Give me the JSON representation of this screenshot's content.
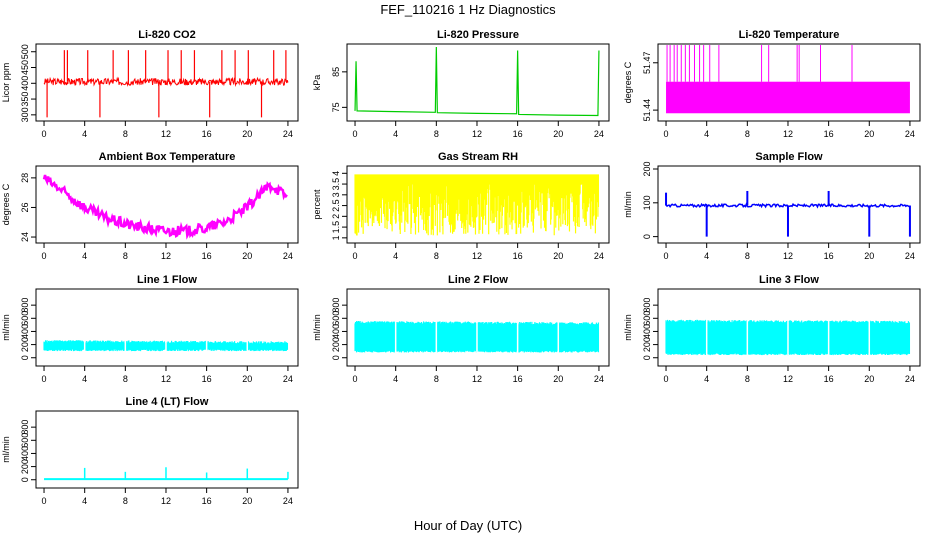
{
  "title": "FEF_110216  1 Hz Diagnostics",
  "xlabel": "Hour of Day (UTC)",
  "chart_data": [
    {
      "type": "line",
      "title": "Li-820 CO2",
      "ylabel": "Licor ppm",
      "color": "#ff0000",
      "xticks": [
        0,
        4,
        8,
        12,
        16,
        20,
        24
      ],
      "yticks": [
        300,
        350,
        400,
        450,
        500
      ],
      "xlim": [
        -0.2,
        24.4
      ],
      "ylim": [
        290,
        515
      ],
      "series": [
        {
          "x": [
            0,
            0.3,
            2,
            2.3,
            4,
            4.3,
            6,
            8,
            8.3,
            10,
            11.3,
            12,
            14,
            16,
            16.3,
            17,
            20,
            22,
            23.8,
            24
          ],
          "y": [
            395,
            405,
            410,
            500,
            400,
            505,
            410,
            395,
            290,
            410,
            500,
            405,
            410,
            400,
            290,
            412,
            405,
            410,
            505,
            360
          ]
        }
      ]
    },
    {
      "type": "line",
      "title": "Li-820 Pressure",
      "ylabel": "kPa",
      "color": "#00cc00",
      "xticks": [
        0,
        4,
        8,
        12,
        16,
        20,
        24
      ],
      "yticks": [
        75,
        85
      ],
      "xlim": [
        -0.2,
        24.4
      ],
      "ylim": [
        72,
        92
      ],
      "series": [
        {
          "x": [
            0,
            0.1,
            0.2,
            4,
            7.9,
            8,
            8.1,
            12,
            15.9,
            16,
            16.1,
            20,
            23.9,
            24
          ],
          "y": [
            74,
            88,
            74,
            73.8,
            73.6,
            92,
            73.5,
            73.3,
            73.2,
            91,
            73,
            72.8,
            72.7,
            91
          ]
        }
      ]
    },
    {
      "type": "line",
      "title": "Li-820 Temperature",
      "ylabel": "degrees C",
      "color": "#ff00ff",
      "xticks": [
        0,
        4,
        8,
        12,
        16,
        20,
        24
      ],
      "yticks": [
        51.44,
        51.47
      ],
      "xlim": [
        -0.2,
        24.4
      ],
      "ylim": [
        51.435,
        51.48
      ],
      "series": [
        {
          "x": [
            0,
            24
          ],
          "y": [
            51.455,
            51.455
          ]
        }
      ]
    },
    {
      "type": "line",
      "title": "Ambient Box Temperature",
      "ylabel": "degrees C",
      "color": "#ff00ff",
      "xticks": [
        0,
        4,
        8,
        12,
        16,
        20,
        24
      ],
      "yticks": [
        24,
        26,
        28
      ],
      "xlim": [
        -0.2,
        24.4
      ],
      "ylim": [
        23.8,
        28.6
      ],
      "series": [
        {
          "x": [
            0,
            2,
            4,
            6,
            8,
            10,
            12,
            14,
            16,
            18,
            20,
            21,
            22,
            22.5,
            23,
            24
          ],
          "y": [
            28.0,
            27.0,
            26.0,
            25.3,
            24.9,
            24.6,
            24.4,
            24.4,
            24.6,
            25.1,
            26.0,
            26.7,
            27.4,
            27.5,
            27.2,
            26.7
          ]
        }
      ]
    },
    {
      "type": "area",
      "title": "Gas Stream RH",
      "ylabel": "percent",
      "color": "#ffff00",
      "xticks": [
        0,
        4,
        8,
        12,
        16,
        20,
        24
      ],
      "yticks": [
        1.0,
        1.5,
        2.0,
        2.5,
        3.0,
        3.5,
        4.0
      ],
      "xlim": [
        -0.2,
        24.4
      ],
      "ylim": [
        0.9,
        4.2
      ],
      "series": [
        {
          "x": [
            0,
            24
          ],
          "y": [
            3.9,
            3.9
          ]
        }
      ]
    },
    {
      "type": "line",
      "title": "Sample Flow",
      "ylabel": "ml/min",
      "color": "#0000ff",
      "xticks": [
        0,
        4,
        8,
        12,
        16,
        20,
        24
      ],
      "yticks": [
        0,
        100,
        200
      ],
      "xlim": [
        -0.2,
        24.4
      ],
      "ylim": [
        -10,
        200
      ],
      "series": [
        {
          "x": [
            0,
            0.1,
            4,
            4.1,
            8,
            8.1,
            12,
            12.1,
            16,
            16.1,
            20,
            20.1,
            24
          ],
          "y": [
            90,
            130,
            90,
            0,
            90,
            135,
            90,
            0,
            90,
            135,
            90,
            0,
            0
          ]
        }
      ]
    },
    {
      "type": "area",
      "title": "Line 1 Flow",
      "ylabel": "ml/min",
      "color": "#00ffff",
      "xticks": [
        0,
        4,
        8,
        12,
        16,
        20,
        24
      ],
      "yticks": [
        0,
        200,
        400,
        600,
        800
      ],
      "xlim": [
        -0.2,
        24.4
      ],
      "ylim": [
        -80,
        1000
      ],
      "series": [
        {
          "x": [
            0,
            24
          ],
          "y": [
            250,
            230
          ]
        }
      ]
    },
    {
      "type": "area",
      "title": "Line 2 Flow",
      "ylabel": "ml/min",
      "color": "#00ffff",
      "xticks": [
        0,
        4,
        8,
        12,
        16,
        20,
        24
      ],
      "yticks": [
        0,
        200,
        400,
        600,
        800
      ],
      "xlim": [
        -0.2,
        24.4
      ],
      "ylim": [
        -80,
        1000
      ],
      "series": [
        {
          "x": [
            0,
            24
          ],
          "y": [
            540,
            520
          ]
        }
      ]
    },
    {
      "type": "area",
      "title": "Line 3 Flow",
      "ylabel": "ml/min",
      "color": "#00ffff",
      "xticks": [
        0,
        4,
        8,
        12,
        16,
        20,
        24
      ],
      "yticks": [
        0,
        200,
        400,
        600,
        800
      ],
      "xlim": [
        -0.2,
        24.4
      ],
      "ylim": [
        -80,
        1000
      ],
      "series": [
        {
          "x": [
            0,
            24
          ],
          "y": [
            560,
            540
          ]
        }
      ]
    },
    {
      "type": "line",
      "title": "Line 4 (LT) Flow",
      "ylabel": "ml/min",
      "color": "#00ffff",
      "xticks": [
        0,
        4,
        8,
        12,
        16,
        20,
        24
      ],
      "yticks": [
        0,
        200,
        400,
        600,
        800
      ],
      "xlim": [
        -0.2,
        24.4
      ],
      "ylim": [
        -80,
        1000
      ],
      "series": [
        {
          "x": [
            0,
            4,
            8,
            12,
            16,
            20,
            24
          ],
          "y": [
            10,
            180,
            120,
            190,
            110,
            170,
            120
          ]
        }
      ]
    }
  ]
}
